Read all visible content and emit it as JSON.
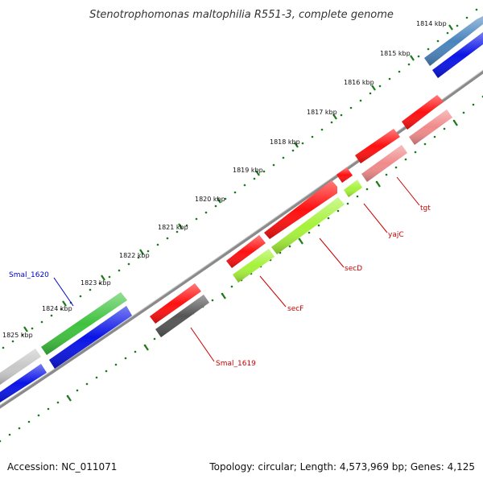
{
  "title": "Stenotrophomonas maltophilia R551-3, complete genome",
  "accession": "Accession: NC_011071",
  "summary": "Topology: circular; Length: 4,573,969 bp; Genes: 4,125",
  "colors": {
    "backbone": "#7f7f7f",
    "tick_dots": "#1b7a1b",
    "gene_red": "#ff1010",
    "gene_pink": "#f08a8a",
    "gene_lime": "#a6f23a",
    "gene_green": "#3ec23e",
    "gene_blue": "#0a14e6",
    "gene_steel": "#4a84bd",
    "gene_gray": "#555555",
    "gene_lightgray": "#c8c8c8",
    "label_red": "#cc0000",
    "label_blue": "#0000cc"
  },
  "scale_labels": [
    "1814 kbp",
    "1815 kbp",
    "1816 kbp",
    "1817 kbp",
    "1818 kbp",
    "1819 kbp",
    "1820 kbp",
    "1821 kbp",
    "1822 kbp",
    "1823 kbp",
    "1824 kbp",
    "1825 kbp"
  ],
  "gene_labels": {
    "tgt": "tgt",
    "yajC": "yajC",
    "secD": "secD",
    "secF": "secF",
    "smal_1619": "Smal_1619",
    "smal_1620": "Smal_1620"
  }
}
